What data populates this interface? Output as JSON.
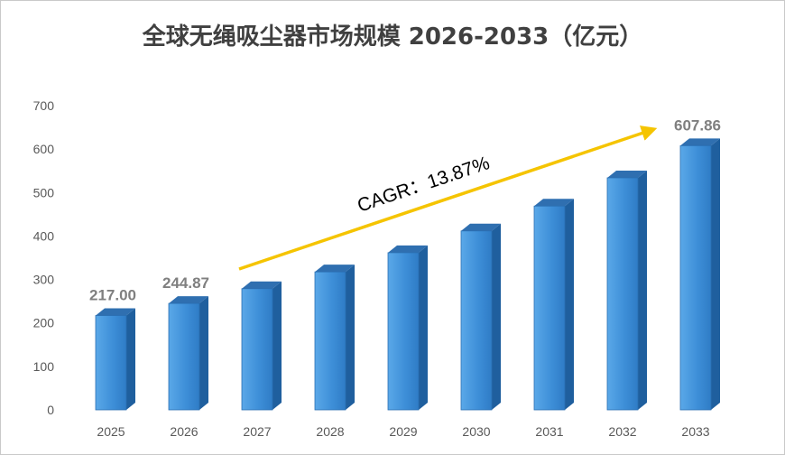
{
  "chart_data": {
    "type": "bar",
    "title": "全球无绳吸尘器市场规模 2026-2033（亿元）",
    "xlabel": "",
    "ylabel": "",
    "categories": [
      "2025",
      "2026",
      "2027",
      "2028",
      "2029",
      "2030",
      "2031",
      "2032",
      "2033"
    ],
    "values": [
      217.0,
      244.87,
      278.8,
      317.5,
      361.6,
      411.7,
      468.9,
      533.9,
      607.86
    ],
    "data_labels": [
      {
        "index": 0,
        "text": "217.00"
      },
      {
        "index": 1,
        "text": "244.87"
      },
      {
        "index": 8,
        "text": "607.86"
      }
    ],
    "ylim": [
      0,
      700
    ],
    "yticks": [
      0,
      100,
      200,
      300,
      400,
      500,
      600,
      700
    ],
    "grid": false,
    "legend": "none",
    "annotation": {
      "text": "CAGR：13.87%",
      "arrow_from_category": "2027",
      "arrow_to_category": "2033",
      "color": "#f5c400"
    },
    "colors": {
      "bar_front": "#4f9fe0",
      "bar_side": "#1f5f9e",
      "bar_top": "#2f6fb0",
      "title": "#404040",
      "data_label": "#7f7f7f"
    }
  }
}
